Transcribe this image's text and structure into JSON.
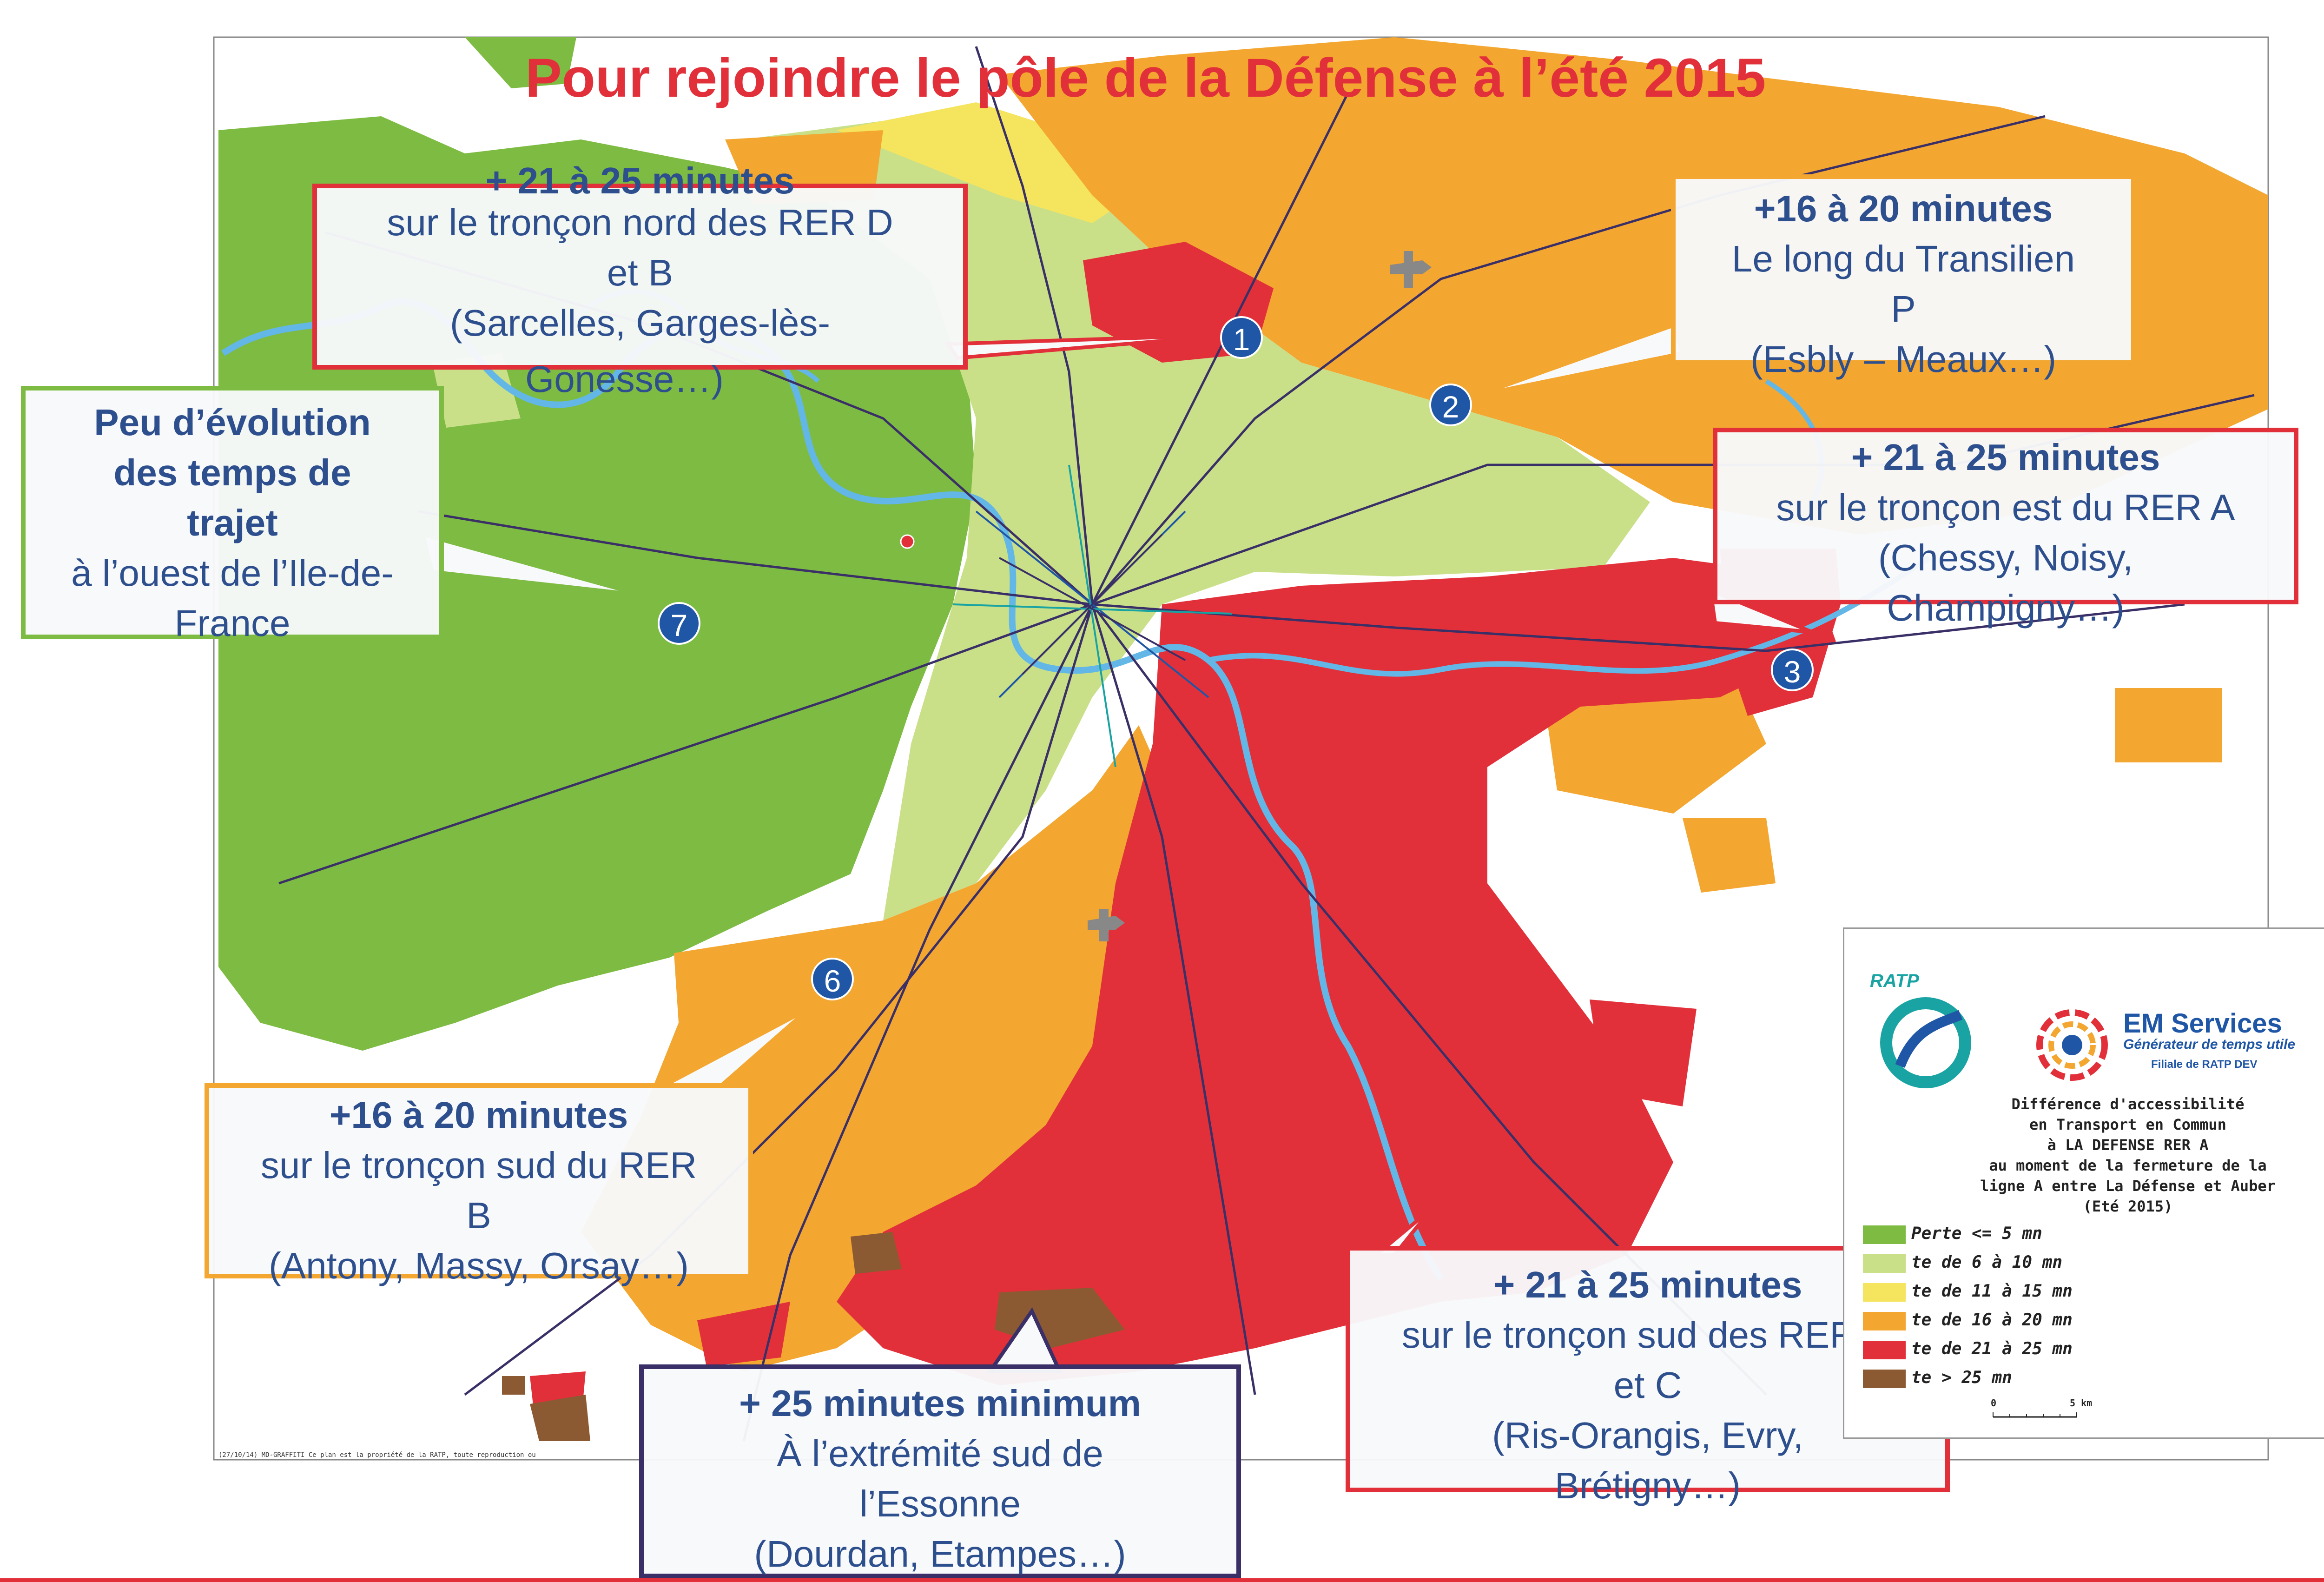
{
  "title": "Pour rejoindre le pôle de la Défense à l’été 2015",
  "colors": {
    "red": "#e2303a",
    "orange": "#f3a630",
    "green": "#7dbb42",
    "light_green": "#c9e089",
    "yellow": "#f5e45e",
    "brown": "#8b5a32",
    "blue_marker": "#1f56a6",
    "text_blue": "#2e4f8e"
  },
  "callouts": {
    "c1": {
      "head": "+ 21 à 25 minutes",
      "lines": [
        "sur le tronçon nord des RER D",
        "et B",
        "(Sarcelles, Garges-lès-",
        "Gonesse…)"
      ]
    },
    "c2": {
      "head": "+16 à 20 minutes",
      "lines": [
        "Le long du Transilien",
        "P",
        "(Esbly – Meaux…)"
      ]
    },
    "c3": {
      "head": "+ 21 à 25 minutes",
      "lines": [
        "sur le tronçon est du RER A",
        "(Chessy, Noisy,",
        "Champigny…)"
      ]
    },
    "c4": {
      "head": "+ 21 à 25 minutes",
      "lines": [
        "sur le tronçon sud des RER D",
        "et C",
        "(Ris-Orangis, Evry,",
        "Brétigny…)"
      ]
    },
    "c5": {
      "head": "+ 25 minutes minimum",
      "lines": [
        "À l’extrémité sud de",
        "l’Essonne",
        "(Dourdan, Etampes…)"
      ]
    },
    "c6": {
      "head": "+16 à 20 minutes",
      "lines": [
        "sur le tronçon sud du RER",
        "B",
        "(Antony, Massy, Orsay…)"
      ]
    },
    "c7": {
      "head_lines": [
        "Peu d’évolution",
        "des temps de",
        "trajet"
      ],
      "lines": [
        "à l’ouest de l’Ile-de-",
        "France"
      ]
    }
  },
  "markers": [
    "1",
    "2",
    "3",
    "6",
    "7"
  ],
  "legend": {
    "ratp_label": "RATP",
    "em_title": "EM Services",
    "em_subtitle": "Générateur de temps utile",
    "em_filiale": "Filiale de RATP DEV",
    "description": [
      "Différence d'accessibilité",
      "en Transport en Commun",
      "à LA DEFENSE RER A",
      "au moment de la fermeture de la",
      "ligne A entre La Défense et Auber",
      "(Eté 2015)"
    ],
    "items": [
      {
        "label": "Perte <= 5 mn",
        "color": "#7dbb42"
      },
      {
        "label": "te de 6 à 10 mn",
        "color": "#c9e089"
      },
      {
        "label": "te de 11 à 15 mn",
        "color": "#f5e45e"
      },
      {
        "label": "te de 16 à 20 mn",
        "color": "#f3a630"
      },
      {
        "label": "te de 21 à 25 mn",
        "color": "#e2303a"
      },
      {
        "label": "te > 25 mn",
        "color": "#8b5a32"
      }
    ],
    "scale": {
      "zero": "0",
      "max": "5 km"
    }
  },
  "footer_note": "(27/10/14) MD-GRAFFITI  Ce plan est la propriété de la RATP, toute reproduction ou"
}
